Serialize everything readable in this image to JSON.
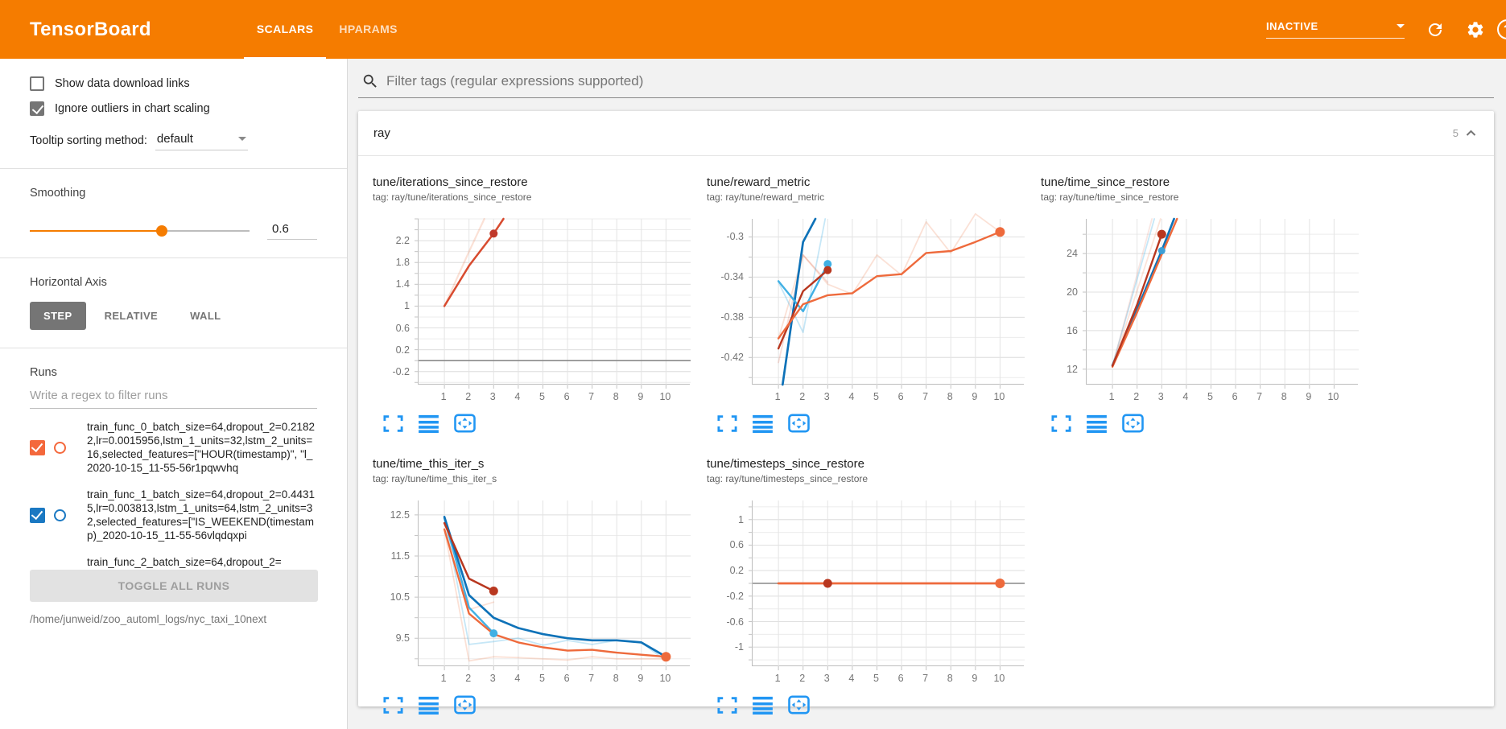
{
  "header": {
    "title": "TensorBoard",
    "tabs": [
      {
        "label": "SCALARS",
        "active": true
      },
      {
        "label": "HPARAMS",
        "active": false
      }
    ],
    "status_dropdown": "INACTIVE",
    "icons": [
      "refresh-icon",
      "settings-gear-icon",
      "help-icon"
    ],
    "colors": {
      "header_bg": "#f57c00"
    }
  },
  "sidebar": {
    "checkboxes": [
      {
        "label": "Show data download links",
        "checked": false
      },
      {
        "label": "Ignore outliers in chart scaling",
        "checked": true
      }
    ],
    "tooltip_sorting": {
      "label": "Tooltip sorting method:",
      "value": "default"
    },
    "smoothing": {
      "label": "Smoothing",
      "value": "0.6",
      "fraction": 0.6
    },
    "horizontal_axis": {
      "label": "Horizontal Axis",
      "options": [
        {
          "label": "STEP",
          "active": true
        },
        {
          "label": "RELATIVE",
          "active": false
        },
        {
          "label": "WALL",
          "active": false
        }
      ]
    },
    "runs": {
      "label": "Runs",
      "filter_placeholder": "Write a regex to filter runs",
      "items": [
        {
          "label": "train_func_0_batch_size=64,dropout_2=0.21822,lr=0.0015956,lstm_1_units=32,lstm_2_units=16,selected_features=[\"HOUR(timestamp)\", \"l_2020-10-15_11-55-56r1pqwvhq",
          "checked": true,
          "color": "#f4683c",
          "partial": false
        },
        {
          "label": "train_func_1_batch_size=64,dropout_2=0.44315,lr=0.003813,lstm_1_units=64,lstm_2_units=32,selected_features=[\"IS_WEEKEND(timestamp)_2020-10-15_11-55-56vlqdqxpi",
          "checked": true,
          "color": "#1a78c2",
          "partial": false
        },
        {
          "label": "train_func_2_batch_size=64,dropout_2=",
          "checked": false,
          "color": "",
          "partial": true
        }
      ],
      "toggle_all_label": "TOGGLE ALL RUNS",
      "log_dir": "/home/junweid/zoo_automl_logs/nyc_taxi_10next"
    }
  },
  "main": {
    "filter_placeholder": "Filter tags (regular expressions supported)",
    "group": {
      "name": "ray",
      "count": "5"
    },
    "chart_footer_icons": [
      "expand-chart-icon",
      "log-scale-icon",
      "fit-domain-icon"
    ],
    "accent_blue": "#2196f3"
  },
  "chart_data": [
    {
      "type": "line",
      "title": "tune/iterations_since_restore",
      "tag": "tag: ray/tune/iterations_since_restore",
      "xlabel": "step",
      "xticks": [
        1,
        2,
        3,
        4,
        5,
        6,
        7,
        8,
        9,
        10
      ],
      "xlim": [
        -0.05,
        11.0
      ],
      "ylim": [
        -0.44,
        2.6
      ],
      "yticks": [
        -0.2,
        0.2,
        0.6,
        1,
        1.4,
        1.8,
        2.2
      ],
      "minor_step": 0.2,
      "zero_line": true,
      "series": [
        {
          "name": "train_func_0 raw",
          "color": "#ee7744",
          "opacity": 0.22,
          "width": 2.2,
          "points": [
            [
              1,
              1
            ],
            [
              2,
              2
            ],
            [
              2.62,
              2.6
            ]
          ]
        },
        {
          "name": "train_func smoothed",
          "color": "#d84b2f",
          "opacity": 1,
          "width": 2.5,
          "points": [
            [
              1,
              1
            ],
            [
              2,
              1.74
            ],
            [
              3,
              2.33
            ],
            [
              3.4,
              2.6
            ]
          ]
        }
      ],
      "dots": [
        {
          "x": 3,
          "y": 2.33,
          "color": "#c0392b",
          "r": 5
        }
      ]
    },
    {
      "type": "line",
      "title": "tune/reward_metric",
      "tag": "tag: ray/tune/reward_metric",
      "xlabel": "step",
      "xticks": [
        1,
        2,
        3,
        4,
        5,
        6,
        7,
        8,
        9,
        10
      ],
      "xlim": [
        -0.05,
        11.0
      ],
      "ylim": [
        -0.447,
        -0.282
      ],
      "yticks": [
        -0.42,
        -0.38,
        -0.34,
        -0.3
      ],
      "minor_step": 0.02,
      "zero_line": false,
      "series": [
        {
          "name": "orange raw",
          "color": "#ee7744",
          "opacity": 0.22,
          "width": 1.8,
          "points": [
            [
              1,
              -0.401
            ],
            [
              2,
              -0.318
            ],
            [
              3,
              -0.347
            ],
            [
              4,
              -0.357
            ],
            [
              5,
              -0.318
            ],
            [
              6,
              -0.338
            ],
            [
              7,
              -0.285
            ],
            [
              8,
              -0.316
            ],
            [
              9,
              -0.277
            ],
            [
              10,
              -0.295
            ]
          ]
        },
        {
          "name": "red raw",
          "color": "#cc3311",
          "opacity": 0.16,
          "width": 1.8,
          "points": [
            [
              1,
              -0.425
            ],
            [
              2,
              -0.318
            ],
            [
              3,
              -0.345
            ]
          ]
        },
        {
          "name": "lightblue raw",
          "color": "#41b0e4",
          "opacity": 0.3,
          "width": 1.8,
          "points": [
            [
              1,
              -0.345
            ],
            [
              2,
              -0.395
            ],
            [
              2.9,
              -0.282
            ]
          ]
        },
        {
          "name": "blue smoothed",
          "color": "#0e72b8",
          "opacity": 1,
          "width": 2.7,
          "points": [
            [
              1.17,
              -0.447
            ],
            [
              2,
              -0.305
            ],
            [
              2.5,
              -0.282
            ]
          ]
        },
        {
          "name": "cyan smoothed",
          "color": "#41b0e4",
          "opacity": 1,
          "width": 2.4,
          "points": [
            [
              1,
              -0.344
            ],
            [
              2,
              -0.374
            ],
            [
              3,
              -0.327
            ]
          ]
        },
        {
          "name": "darkred smoothed",
          "color": "#b8371f",
          "opacity": 1,
          "width": 2.4,
          "points": [
            [
              1,
              -0.411
            ],
            [
              2,
              -0.354
            ],
            [
              3,
              -0.333
            ]
          ]
        },
        {
          "name": "orange smoothed",
          "color": "#ee6a3c",
          "opacity": 1,
          "width": 2.4,
          "points": [
            [
              1,
              -0.401
            ],
            [
              2,
              -0.367
            ],
            [
              3,
              -0.358
            ],
            [
              4,
              -0.356
            ],
            [
              5,
              -0.339
            ],
            [
              6,
              -0.337
            ],
            [
              7,
              -0.316
            ],
            [
              8,
              -0.314
            ],
            [
              9,
              -0.305
            ],
            [
              10,
              -0.295
            ]
          ]
        }
      ],
      "dots": [
        {
          "x": 3,
          "y": -0.327,
          "color": "#41b0e4",
          "r": 5
        },
        {
          "x": 3,
          "y": -0.333,
          "color": "#b8371f",
          "r": 5
        },
        {
          "x": 10,
          "y": -0.295,
          "color": "#ee6a3c",
          "r": 6
        }
      ]
    },
    {
      "type": "line",
      "title": "tune/time_since_restore",
      "tag": "tag: ray/tune/time_since_restore",
      "xlabel": "step",
      "xticks": [
        1,
        2,
        3,
        4,
        5,
        6,
        7,
        8,
        9,
        10
      ],
      "xlim": [
        -0.05,
        11.0
      ],
      "ylim": [
        10.4,
        27.6
      ],
      "yticks": [
        12,
        16,
        20,
        24
      ],
      "minor_step": 2,
      "zero_line": false,
      "series": [
        {
          "name": "lightblue raw",
          "color": "#41b0e4",
          "opacity": 0.3,
          "width": 1.8,
          "points": [
            [
              1,
              12.4
            ],
            [
              2.7,
              27.6
            ]
          ]
        },
        {
          "name": "pink raw",
          "color": "#ee7744",
          "opacity": 0.2,
          "width": 1.8,
          "points": [
            [
              1,
              12.3
            ],
            [
              2.95,
              27.6
            ]
          ]
        },
        {
          "name": "pink raw 2",
          "color": "#cc3311",
          "opacity": 0.12,
          "width": 1.8,
          "points": [
            [
              1,
              12.3
            ],
            [
              2.6,
              27.6
            ]
          ]
        },
        {
          "name": "blue smoothed",
          "color": "#0e72b8",
          "opacity": 1,
          "width": 2.7,
          "points": [
            [
              1,
              12.4
            ],
            [
              2,
              18.2
            ],
            [
              3,
              24.3
            ],
            [
              3.5,
              27.6
            ]
          ]
        },
        {
          "name": "orange smoothed",
          "color": "#ee6a3c",
          "opacity": 1,
          "width": 2.4,
          "points": [
            [
              1,
              12.25
            ],
            [
              2,
              17.9
            ],
            [
              3,
              23.9
            ],
            [
              3.62,
              27.6
            ]
          ]
        },
        {
          "name": "darkred smoothed",
          "color": "#b8371f",
          "opacity": 1,
          "width": 2.4,
          "points": [
            [
              1,
              12.35
            ],
            [
              2,
              18.7
            ],
            [
              3,
              26.0
            ]
          ]
        }
      ],
      "dots": [
        {
          "x": 3,
          "y": 24.3,
          "color": "#3d9fd6",
          "r": 4.5
        },
        {
          "x": 3,
          "y": 26.0,
          "color": "#b8371f",
          "r": 5.5
        }
      ]
    },
    {
      "type": "line",
      "title": "tune/time_this_iter_s",
      "tag": "tag: ray/tune/time_this_iter_s",
      "xlabel": "step",
      "xticks": [
        1,
        2,
        3,
        4,
        5,
        6,
        7,
        8,
        9,
        10
      ],
      "xlim": [
        -0.05,
        11.0
      ],
      "ylim": [
        8.82,
        12.85
      ],
      "yticks": [
        9.5,
        10.5,
        11.5,
        12.5
      ],
      "minor_step": 0.5,
      "zero_line": false,
      "series": [
        {
          "name": "lightblue raw",
          "color": "#41b0e4",
          "opacity": 0.3,
          "width": 1.8,
          "points": [
            [
              1,
              12.45
            ],
            [
              2,
              9.35
            ],
            [
              3,
              9.42
            ],
            [
              4,
              9.5
            ],
            [
              5,
              9.33
            ],
            [
              6,
              9.45
            ],
            [
              7,
              9.35
            ],
            [
              8,
              9.45
            ],
            [
              9,
              9.4
            ],
            [
              10,
              8.95
            ]
          ]
        },
        {
          "name": "pink raw",
          "color": "#ee7744",
          "opacity": 0.22,
          "width": 1.8,
          "points": [
            [
              1,
              12.15
            ],
            [
              2,
              8.95
            ],
            [
              3,
              9.05
            ],
            [
              4,
              9.03
            ],
            [
              5,
              9.0
            ],
            [
              6,
              8.97
            ],
            [
              7,
              9.05
            ],
            [
              8,
              9.0
            ],
            [
              9,
              9.0
            ],
            [
              10,
              9.0
            ]
          ]
        },
        {
          "name": "pink raw 2",
          "color": "#ee7744",
          "opacity": 0.22,
          "width": 1.8,
          "points": [
            [
              2,
              10.2
            ],
            [
              3,
              10.38
            ]
          ]
        },
        {
          "name": "cyan smoothed",
          "color": "#41b0e4",
          "opacity": 1,
          "width": 2.4,
          "points": [
            [
              1,
              12.42
            ],
            [
              2,
              10.25
            ],
            [
              3,
              9.62
            ]
          ]
        },
        {
          "name": "blue smoothed",
          "color": "#0e72b8",
          "opacity": 1,
          "width": 2.7,
          "points": [
            [
              1,
              12.45
            ],
            [
              2,
              10.55
            ],
            [
              3,
              10.0
            ],
            [
              4,
              9.75
            ],
            [
              5,
              9.6
            ],
            [
              6,
              9.5
            ],
            [
              7,
              9.45
            ],
            [
              8,
              9.45
            ],
            [
              9,
              9.4
            ],
            [
              10,
              9.05
            ]
          ]
        },
        {
          "name": "orange smoothed",
          "color": "#ee6a3c",
          "opacity": 1,
          "width": 2.4,
          "points": [
            [
              1,
              12.15
            ],
            [
              2,
              10.1
            ],
            [
              3,
              9.6
            ],
            [
              4,
              9.4
            ],
            [
              5,
              9.28
            ],
            [
              6,
              9.2
            ],
            [
              7,
              9.22
            ],
            [
              8,
              9.15
            ],
            [
              9,
              9.1
            ],
            [
              10,
              9.05
            ]
          ]
        },
        {
          "name": "darkred smoothed",
          "color": "#b8371f",
          "opacity": 1,
          "width": 2.5,
          "points": [
            [
              1,
              12.3
            ],
            [
              2,
              10.95
            ],
            [
              3,
              10.65
            ]
          ]
        }
      ],
      "dots": [
        {
          "x": 3,
          "y": 9.62,
          "color": "#41b0e4",
          "r": 5
        },
        {
          "x": 3,
          "y": 10.65,
          "color": "#b8371f",
          "r": 5.5
        },
        {
          "x": 10,
          "y": 9.05,
          "color": "#ee6a3c",
          "r": 6
        }
      ]
    },
    {
      "type": "line",
      "title": "tune/timesteps_since_restore",
      "tag": "tag: ray/tune/timesteps_since_restore",
      "xlabel": "step",
      "xticks": [
        1,
        2,
        3,
        4,
        5,
        6,
        7,
        8,
        9,
        10
      ],
      "xlim": [
        -0.05,
        11.0
      ],
      "ylim": [
        -1.3,
        1.3
      ],
      "yticks": [
        -1,
        -0.6,
        -0.2,
        0.2,
        0.6,
        1
      ],
      "minor_step": 0.2,
      "zero_line": true,
      "series": [
        {
          "name": "orange smoothed",
          "color": "#ee6a3c",
          "opacity": 1,
          "width": 2.8,
          "points": [
            [
              1,
              0
            ],
            [
              10,
              0
            ]
          ]
        }
      ],
      "dots": [
        {
          "x": 3,
          "y": 0,
          "color": "#b8371f",
          "r": 5.5
        },
        {
          "x": 10,
          "y": 0,
          "color": "#ee6a3c",
          "r": 6
        }
      ]
    }
  ]
}
